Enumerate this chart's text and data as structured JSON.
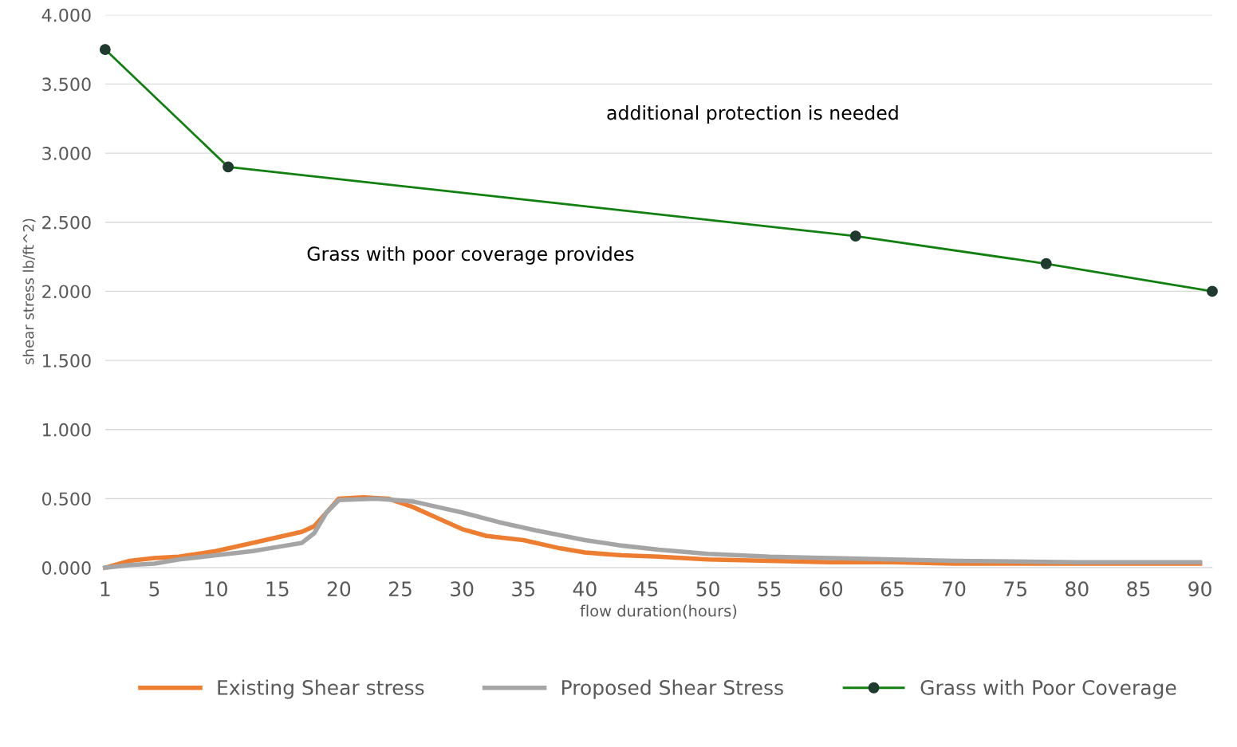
{
  "chart_data": {
    "type": "line",
    "xlabel": "flow duration(hours)",
    "ylabel": "shear stress lb/ft^2)",
    "xlim": [
      1,
      91
    ],
    "xticks": [
      1,
      5,
      10,
      15,
      20,
      25,
      30,
      35,
      40,
      45,
      50,
      55,
      60,
      65,
      70,
      75,
      80,
      85,
      90
    ],
    "ylim": [
      0,
      4
    ],
    "yticks": [
      {
        "value": 0,
        "label": "0.000"
      },
      {
        "value": 0.5,
        "label": "0.500"
      },
      {
        "value": 1,
        "label": "1.000"
      },
      {
        "value": 1.5,
        "label": "1.500"
      },
      {
        "value": 2,
        "label": "2.000"
      },
      {
        "value": 2.5,
        "label": "2.500"
      },
      {
        "value": 3,
        "label": "3.000"
      },
      {
        "value": 3.5,
        "label": "3.500"
      },
      {
        "value": 4,
        "label": "4.000"
      }
    ],
    "grid": "y",
    "legend": "bottom",
    "series": [
      {
        "name": "Existing Shear stress",
        "color": "#ed7d31",
        "marker": "none",
        "x": [
          1,
          3,
          5,
          7,
          10,
          13,
          15,
          17,
          18,
          19,
          20,
          22,
          24,
          26,
          28,
          30,
          32,
          35,
          38,
          40,
          43,
          46,
          50,
          55,
          60,
          65,
          70,
          80,
          90
        ],
        "values": [
          0,
          0.05,
          0.07,
          0.08,
          0.12,
          0.18,
          0.22,
          0.26,
          0.3,
          0.4,
          0.5,
          0.51,
          0.5,
          0.44,
          0.36,
          0.28,
          0.23,
          0.2,
          0.14,
          0.11,
          0.09,
          0.08,
          0.06,
          0.05,
          0.04,
          0.04,
          0.03,
          0.03,
          0.03
        ]
      },
      {
        "name": "Proposed Shear Stress",
        "color": "#a5a5a5",
        "marker": "none",
        "x": [
          1,
          3,
          5,
          7,
          10,
          13,
          15,
          17,
          18,
          19,
          20,
          23,
          26,
          28,
          30,
          33,
          36,
          40,
          43,
          46,
          50,
          55,
          60,
          65,
          70,
          80,
          90
        ],
        "values": [
          0,
          0.02,
          0.03,
          0.06,
          0.09,
          0.12,
          0.15,
          0.18,
          0.25,
          0.4,
          0.49,
          0.5,
          0.48,
          0.44,
          0.4,
          0.33,
          0.27,
          0.2,
          0.16,
          0.13,
          0.1,
          0.08,
          0.07,
          0.06,
          0.05,
          0.04,
          0.04
        ]
      },
      {
        "name": "Grass with Poor Coverage",
        "color": "#118011",
        "marker": "circle",
        "x": [
          1,
          11,
          62,
          77.5,
          91
        ],
        "values": [
          3.75,
          2.9,
          2.4,
          2.2,
          2.0
        ]
      }
    ],
    "annotations": [
      "additional protection is needed",
      "Grass with poor coverage provides"
    ]
  }
}
